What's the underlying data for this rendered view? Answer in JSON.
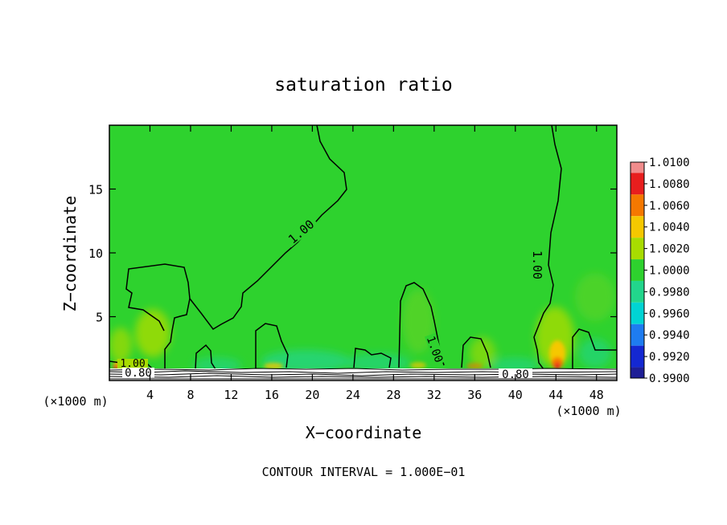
{
  "chart_data": {
    "type": "heatmap",
    "title": "saturation ratio",
    "xlabel": "X−coordinate",
    "ylabel": "Z−coordinate",
    "x_unit_left": "(×1000 m)",
    "x_unit_right": "(×1000 m)",
    "footer": "CONTOUR INTERVAL = 1.000E−01",
    "xlim": [
      0,
      50
    ],
    "ylim": [
      0,
      20
    ],
    "x_ticks": [
      4,
      8,
      12,
      16,
      20,
      24,
      28,
      32,
      36,
      40,
      44,
      48
    ],
    "y_ticks": [
      5,
      10,
      15
    ],
    "colorbar": {
      "labels": [
        "1.0100",
        "1.0080",
        "1.0060",
        "1.0040",
        "1.0020",
        "1.0000",
        "0.9980",
        "0.9960",
        "0.9940",
        "0.9920",
        "0.9900"
      ],
      "colors": [
        "#f08c8c",
        "#e81e1e",
        "#f57800",
        "#f5c800",
        "#a8dc00",
        "#2ed22e",
        "#22d68c",
        "#00d4d4",
        "#1e7cf0",
        "#1428d2",
        "#1e1e96",
        "#78289c"
      ]
    },
    "contour_labels": [
      "1.00",
      "1.00",
      "1.00",
      "1.00",
      "0.80",
      "0.80"
    ],
    "background_value": 1.0
  }
}
